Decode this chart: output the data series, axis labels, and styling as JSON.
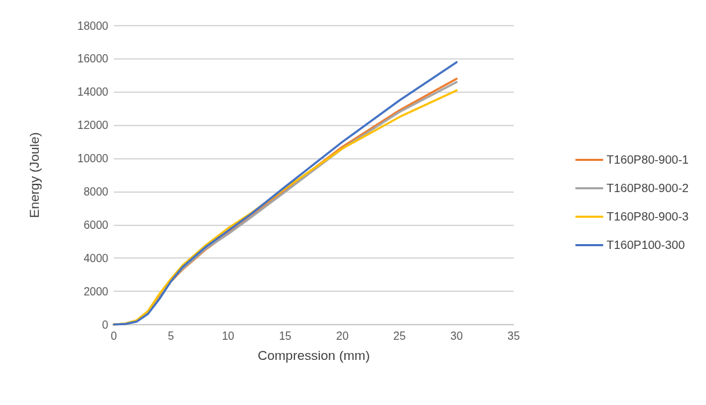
{
  "chart_data": {
    "type": "line",
    "xlabel": "Compression (mm)",
    "ylabel": "Energy (Joule)",
    "x": [
      0,
      1,
      2,
      3,
      4,
      5,
      6,
      8,
      10,
      12,
      15,
      20,
      25,
      30
    ],
    "series": [
      {
        "name": "T160P80-900-1",
        "color": "#ed7d31",
        "values": [
          0,
          40,
          220,
          750,
          1750,
          2600,
          3300,
          4500,
          5500,
          6500,
          8100,
          10700,
          12900,
          14800
        ]
      },
      {
        "name": "T160P80-900-2",
        "color": "#a5a5a5",
        "values": [
          0,
          50,
          240,
          800,
          1800,
          2650,
          3350,
          4550,
          5450,
          6450,
          8000,
          10600,
          12800,
          14600
        ]
      },
      {
        "name": "T160P80-900-3",
        "color": "#ffc000",
        "values": [
          0,
          50,
          250,
          820,
          1850,
          2750,
          3550,
          4750,
          5800,
          6700,
          8200,
          10600,
          12500,
          14100
        ]
      },
      {
        "name": "T160P100-300",
        "color": "#4472c4",
        "values": [
          0,
          30,
          180,
          650,
          1550,
          2600,
          3450,
          4650,
          5650,
          6650,
          8300,
          11000,
          13500,
          15800
        ]
      }
    ],
    "xlim": [
      0,
      35
    ],
    "xticks": [
      0,
      5,
      10,
      15,
      20,
      25,
      30,
      35
    ],
    "ylim": [
      0,
      18000
    ],
    "yticks": [
      0,
      2000,
      4000,
      6000,
      8000,
      10000,
      12000,
      14000,
      16000,
      18000
    ],
    "grid": "y",
    "legend": "right",
    "marker": "none",
    "line_style": "solid"
  }
}
